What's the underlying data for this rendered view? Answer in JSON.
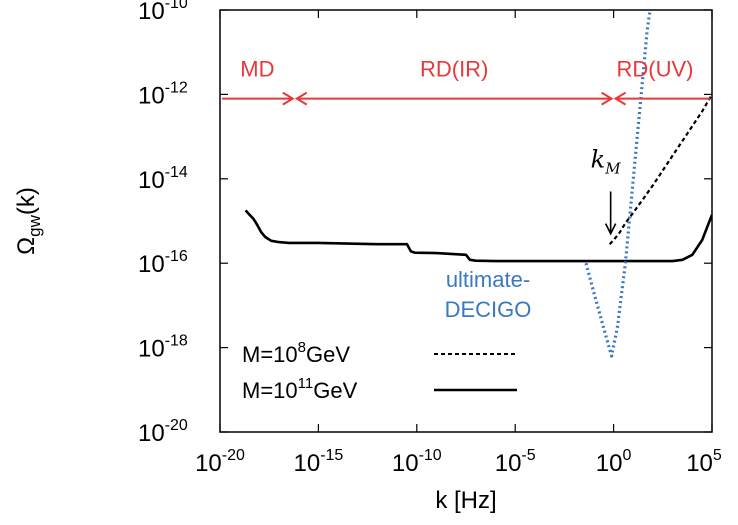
{
  "chart_data": {
    "type": "line",
    "xlabel": "k [Hz]",
    "ylabel": "Ωgw(k)",
    "xscale": "log",
    "yscale": "log",
    "xlim_exp": [
      -20,
      5
    ],
    "ylim_exp": [
      -20,
      -10
    ],
    "x_ticks": [
      -20,
      -15,
      -10,
      -5,
      0,
      5
    ],
    "y_ticks": [
      -20,
      -18,
      -16,
      -14,
      -12,
      -10
    ],
    "grid": false,
    "legend_position": "bottom-left",
    "series": [
      {
        "name": "M=10^8GeV",
        "legend_base": "M=10",
        "legend_exp": "8",
        "legend_suffix": "GeV",
        "style": "dashed",
        "color": "#000000",
        "log10_k": [
          -0.2,
          0.0,
          0.3,
          0.6,
          1.0,
          1.5,
          2.0,
          2.5,
          3.0,
          3.5,
          4.0,
          4.5,
          5.0
        ],
        "log10_omega": [
          -15.55,
          -15.45,
          -15.28,
          -15.05,
          -14.8,
          -14.48,
          -14.15,
          -13.8,
          -13.45,
          -13.1,
          -12.75,
          -12.4,
          -12.0
        ]
      },
      {
        "name": "M=10^11GeV",
        "legend_base": "M=10",
        "legend_exp": "11",
        "legend_suffix": "GeV",
        "style": "solid",
        "color": "#000000",
        "log10_k": [
          -18.7,
          -18.5,
          -18.3,
          -18.1,
          -17.9,
          -17.7,
          -17.4,
          -17.0,
          -16.5,
          -15.0,
          -12.0,
          -10.5,
          -10.3,
          -10.1,
          -9.0,
          -7.5,
          -7.3,
          -7.0,
          -6.0,
          -3.0,
          0.0,
          1.0,
          2.0,
          3.0,
          3.5,
          4.0,
          4.5,
          5.0
        ],
        "log10_omega": [
          -14.75,
          -14.85,
          -14.95,
          -15.1,
          -15.27,
          -15.38,
          -15.47,
          -15.5,
          -15.52,
          -15.52,
          -15.55,
          -15.55,
          -15.72,
          -15.75,
          -15.76,
          -15.8,
          -15.92,
          -15.94,
          -15.95,
          -15.95,
          -15.95,
          -15.95,
          -15.95,
          -15.95,
          -15.92,
          -15.8,
          -15.45,
          -14.85
        ]
      },
      {
        "name": "ultimate-DECIGO",
        "style": "dotted",
        "color": "#3a78c0",
        "log10_k": [
          -1.4,
          -1.0,
          -0.5,
          -0.1,
          0.2,
          0.6,
          1.0,
          1.4,
          1.7,
          2.0
        ],
        "log10_omega": [
          -16.0,
          -16.7,
          -17.55,
          -18.2,
          -17.5,
          -16.0,
          -14.0,
          -12.0,
          -10.5,
          -9.5
        ]
      }
    ],
    "annotations": {
      "regions": [
        {
          "label": "MD",
          "from_log10_k": -20.0,
          "to_log10_k": -16.2
        },
        {
          "label": "RD(IR)",
          "from_log10_k": -16.2,
          "to_log10_k": 0.0
        },
        {
          "label": "RD(UV)",
          "from_log10_k": 0.0,
          "to_log10_k": 5.0
        }
      ],
      "regions_log10_omega": -12.1,
      "region_color": "#e8383a",
      "decigo_label_lines": [
        "ultimate-",
        "DECIGO"
      ],
      "km_label": "k",
      "km_subscript": "M",
      "km_arrow_log10_k": -0.15,
      "km_arrow_from_log10_omega": -14.3,
      "km_arrow_to_log10_omega": -15.3
    }
  }
}
